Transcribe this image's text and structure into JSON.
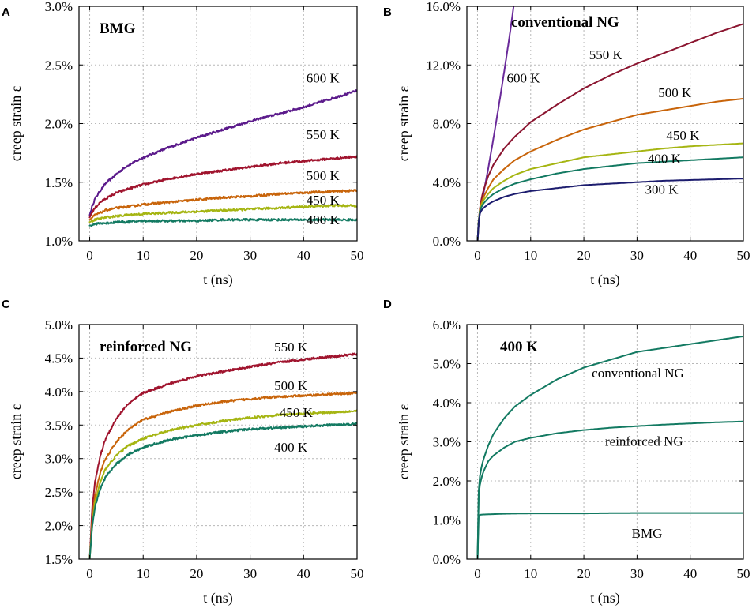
{
  "chart_data": [
    {
      "panel": "A",
      "type": "line",
      "title": "BMG",
      "xlabel": "t (ns)",
      "ylabel": "creep strain ε",
      "xlim": [
        -2,
        50
      ],
      "ylim": [
        1.0,
        3.0
      ],
      "xticks": [
        0,
        10,
        20,
        30,
        40,
        50
      ],
      "xtick_labels": [
        "0",
        "10",
        "20",
        "30",
        "40",
        "50"
      ],
      "yticks": [
        1.0,
        1.5,
        2.0,
        2.5,
        3.0
      ],
      "ytick_labels": [
        "1.0%",
        "1.5%",
        "2.0%",
        "2.5%",
        "3.0%"
      ],
      "noisy": true,
      "series": [
        {
          "name": "600 K",
          "label": "600 K",
          "color": "#5b1a8b",
          "x": [
            0,
            0.5,
            1,
            2,
            3,
            5,
            7,
            10,
            15,
            20,
            25,
            30,
            35,
            40,
            45,
            50
          ],
          "values": [
            1.22,
            1.3,
            1.36,
            1.43,
            1.49,
            1.57,
            1.64,
            1.71,
            1.8,
            1.88,
            1.95,
            2.02,
            2.08,
            2.14,
            2.21,
            2.28
          ]
        },
        {
          "name": "550 K",
          "label": "550 K",
          "color": "#a0142e",
          "x": [
            0,
            0.5,
            1,
            2,
            3,
            5,
            7,
            10,
            15,
            20,
            25,
            30,
            35,
            40,
            45,
            50
          ],
          "values": [
            1.2,
            1.25,
            1.28,
            1.33,
            1.36,
            1.41,
            1.44,
            1.48,
            1.53,
            1.57,
            1.6,
            1.63,
            1.66,
            1.68,
            1.7,
            1.72
          ]
        },
        {
          "name": "500 K",
          "label": "500 K",
          "color": "#c8640a",
          "x": [
            0,
            1,
            2,
            3,
            5,
            7,
            10,
            15,
            20,
            25,
            30,
            35,
            40,
            45,
            50
          ],
          "values": [
            1.18,
            1.22,
            1.24,
            1.26,
            1.28,
            1.29,
            1.31,
            1.33,
            1.35,
            1.37,
            1.38,
            1.4,
            1.41,
            1.42,
            1.43
          ]
        },
        {
          "name": "450 K",
          "label": "450 K",
          "color": "#a5b512",
          "x": [
            0,
            1,
            2,
            3,
            5,
            7,
            10,
            15,
            20,
            25,
            30,
            35,
            40,
            45,
            50
          ],
          "values": [
            1.16,
            1.18,
            1.19,
            1.2,
            1.21,
            1.22,
            1.23,
            1.24,
            1.25,
            1.26,
            1.27,
            1.28,
            1.29,
            1.3,
            1.3
          ]
        },
        {
          "name": "400 K",
          "label": "400 K",
          "color": "#137a62",
          "x": [
            0,
            1,
            2,
            3,
            5,
            7,
            10,
            15,
            20,
            25,
            30,
            35,
            40,
            45,
            50
          ],
          "values": [
            1.13,
            1.14,
            1.15,
            1.15,
            1.16,
            1.16,
            1.17,
            1.17,
            1.17,
            1.18,
            1.18,
            1.18,
            1.18,
            1.18,
            1.18
          ]
        }
      ],
      "annotations": [
        {
          "text": "600 K",
          "x": 40.5,
          "y": 2.35
        },
        {
          "text": "550 K",
          "x": 40.5,
          "y": 1.87
        },
        {
          "text": "500 K",
          "x": 40.5,
          "y": 1.52
        },
        {
          "text": "450 K",
          "x": 40.5,
          "y": 1.31
        },
        {
          "text": "400 K",
          "x": 40.5,
          "y": 1.14
        }
      ]
    },
    {
      "panel": "B",
      "type": "line",
      "title": "conventional NG",
      "xlabel": "t (ns)",
      "ylabel": "creep strain ε",
      "xlim": [
        -2,
        50
      ],
      "ylim": [
        0.0,
        16.0
      ],
      "xticks": [
        0,
        10,
        20,
        30,
        40,
        50
      ],
      "xtick_labels": [
        "0",
        "10",
        "20",
        "30",
        "40",
        "50"
      ],
      "yticks": [
        0.0,
        4.0,
        8.0,
        12.0,
        16.0
      ],
      "ytick_labels": [
        "0.0%",
        "4.0%",
        "8.0%",
        "12.0%",
        "16.0%"
      ],
      "noisy": false,
      "series": [
        {
          "name": "600 K",
          "label": "600 K",
          "color": "#6a2a9a",
          "x": [
            0,
            0.3,
            0.6,
            1,
            2,
            3,
            4,
            5,
            6,
            6.8
          ],
          "values": [
            0,
            1.5,
            2.4,
            3.0,
            4.9,
            7.0,
            9.2,
            11.5,
            13.9,
            16.0
          ]
        },
        {
          "name": "550 K",
          "label": "550 K",
          "color": "#8b1530",
          "x": [
            0,
            0.3,
            0.6,
            1,
            2,
            3,
            5,
            7,
            10,
            15,
            20,
            25,
            30,
            35,
            40,
            45,
            50
          ],
          "values": [
            0,
            1.8,
            2.6,
            3.3,
            4.4,
            5.2,
            6.3,
            7.1,
            8.1,
            9.3,
            10.4,
            11.3,
            12.1,
            12.8,
            13.5,
            14.2,
            14.8
          ]
        },
        {
          "name": "500 K",
          "label": "500 K",
          "color": "#c8640a",
          "x": [
            0,
            0.3,
            0.6,
            1,
            2,
            3,
            5,
            7,
            10,
            15,
            20,
            25,
            30,
            35,
            40,
            45,
            50
          ],
          "values": [
            0,
            1.8,
            2.4,
            2.9,
            3.6,
            4.2,
            4.9,
            5.5,
            6.1,
            6.9,
            7.6,
            8.1,
            8.6,
            8.9,
            9.2,
            9.5,
            9.7
          ]
        },
        {
          "name": "450 K",
          "label": "450 K",
          "color": "#a5b512",
          "x": [
            0,
            0.3,
            0.6,
            1,
            2,
            3,
            5,
            7,
            10,
            15,
            20,
            25,
            30,
            35,
            40,
            45,
            50
          ],
          "values": [
            0,
            1.8,
            2.3,
            2.7,
            3.2,
            3.6,
            4.1,
            4.5,
            4.9,
            5.3,
            5.7,
            5.9,
            6.1,
            6.3,
            6.45,
            6.55,
            6.65
          ]
        },
        {
          "name": "400 K",
          "label": "400 K",
          "color": "#137a62",
          "x": [
            0,
            0.3,
            0.6,
            1,
            2,
            3,
            5,
            7,
            10,
            15,
            20,
            25,
            30,
            35,
            40,
            45,
            50
          ],
          "values": [
            0,
            1.8,
            2.2,
            2.5,
            2.9,
            3.2,
            3.6,
            3.9,
            4.2,
            4.6,
            4.9,
            5.1,
            5.3,
            5.4,
            5.5,
            5.6,
            5.7
          ]
        },
        {
          "name": "300 K",
          "label": "300 K",
          "color": "#1c1c6e",
          "x": [
            0,
            0.3,
            0.6,
            1,
            2,
            3,
            5,
            7,
            10,
            15,
            20,
            25,
            30,
            35,
            40,
            45,
            50
          ],
          "values": [
            0,
            1.7,
            2.0,
            2.2,
            2.5,
            2.7,
            3.0,
            3.2,
            3.4,
            3.6,
            3.8,
            3.9,
            4.0,
            4.1,
            4.15,
            4.2,
            4.25
          ]
        }
      ],
      "annotations": [
        {
          "text": "600 K",
          "x": 5.5,
          "y": 10.8
        },
        {
          "text": "550 K",
          "x": 21,
          "y": 12.4
        },
        {
          "text": "500 K",
          "x": 34,
          "y": 9.8
        },
        {
          "text": "450 K",
          "x": 35.5,
          "y": 6.9
        },
        {
          "text": "400  K",
          "x": 32,
          "y": 5.3
        },
        {
          "text": "300 K",
          "x": 31.5,
          "y": 3.2
        }
      ]
    },
    {
      "panel": "C",
      "type": "line",
      "title": "reinforced NG",
      "xlabel": "t (ns)",
      "ylabel": "creep strain ε",
      "xlim": [
        -2,
        50
      ],
      "ylim": [
        1.5,
        5.0
      ],
      "xticks": [
        0,
        10,
        20,
        30,
        40,
        50
      ],
      "xtick_labels": [
        "0",
        "10",
        "20",
        "30",
        "40",
        "50"
      ],
      "yticks": [
        1.5,
        2.0,
        2.5,
        3.0,
        3.5,
        4.0,
        4.5,
        5.0
      ],
      "ytick_labels": [
        "1.5%",
        "2.0%",
        "2.5%",
        "3.0%",
        "3.5%",
        "4.0%",
        "4.5%",
        "5.0%"
      ],
      "noisy": true,
      "series": [
        {
          "name": "550 K",
          "label": "550 K",
          "color": "#a0142e",
          "x": [
            0,
            0.5,
            1,
            2,
            3,
            5,
            7,
            10,
            15,
            20,
            25,
            30,
            35,
            40,
            45,
            50
          ],
          "values": [
            1.5,
            2.3,
            2.65,
            3.05,
            3.3,
            3.6,
            3.8,
            3.98,
            4.12,
            4.23,
            4.3,
            4.37,
            4.43,
            4.48,
            4.52,
            4.56
          ]
        },
        {
          "name": "500 K",
          "label": "500 K",
          "color": "#c8640a",
          "x": [
            0,
            0.5,
            1,
            2,
            3,
            5,
            7,
            10,
            15,
            20,
            25,
            30,
            35,
            40,
            45,
            50
          ],
          "values": [
            1.5,
            2.1,
            2.45,
            2.8,
            3.0,
            3.25,
            3.42,
            3.58,
            3.7,
            3.79,
            3.85,
            3.89,
            3.92,
            3.94,
            3.96,
            3.98
          ]
        },
        {
          "name": "450 K",
          "label": "450 K",
          "color": "#a5b512",
          "x": [
            0,
            0.5,
            1,
            2,
            3,
            5,
            7,
            10,
            15,
            20,
            25,
            30,
            35,
            40,
            45,
            50
          ],
          "values": [
            1.5,
            2.05,
            2.35,
            2.65,
            2.85,
            3.05,
            3.18,
            3.3,
            3.42,
            3.5,
            3.56,
            3.61,
            3.65,
            3.67,
            3.69,
            3.71
          ]
        },
        {
          "name": "400 K",
          "label": "400 K",
          "color": "#137a62",
          "x": [
            0,
            0.5,
            1,
            2,
            3,
            5,
            7,
            10,
            15,
            20,
            25,
            30,
            35,
            40,
            45,
            50
          ],
          "values": [
            1.5,
            2.0,
            2.28,
            2.55,
            2.73,
            2.92,
            3.05,
            3.17,
            3.28,
            3.35,
            3.4,
            3.44,
            3.46,
            3.48,
            3.5,
            3.52
          ]
        }
      ],
      "annotations": [
        {
          "text": "550 K",
          "x": 34.5,
          "y": 4.6
        },
        {
          "text": "500 K",
          "x": 34.5,
          "y": 4.02
        },
        {
          "text": "450 K",
          "x": 35.5,
          "y": 3.62
        },
        {
          "text": "400 K",
          "x": 34.5,
          "y": 3.1
        }
      ]
    },
    {
      "panel": "D",
      "type": "line",
      "title": "400 K",
      "xlabel": "t (ns)",
      "ylabel": "creep strain ε",
      "xlim": [
        -2,
        50
      ],
      "ylim": [
        0.0,
        6.0
      ],
      "xticks": [
        0,
        10,
        20,
        30,
        40,
        50
      ],
      "xtick_labels": [
        "0",
        "10",
        "20",
        "30",
        "40",
        "50"
      ],
      "yticks": [
        0.0,
        1.0,
        2.0,
        3.0,
        4.0,
        5.0,
        6.0
      ],
      "ytick_labels": [
        "0.0%",
        "1.0%",
        "2.0%",
        "3.0%",
        "4.0%",
        "5.0%",
        "6.0%"
      ],
      "noisy": false,
      "series": [
        {
          "name": "conventional NG",
          "label": "conventional NG",
          "color": "#137a62",
          "x": [
            0,
            0.2,
            0.5,
            1,
            2,
            3,
            5,
            7,
            10,
            15,
            20,
            25,
            30,
            35,
            40,
            45,
            50
          ],
          "values": [
            0,
            1.7,
            2.2,
            2.5,
            2.9,
            3.2,
            3.6,
            3.9,
            4.2,
            4.6,
            4.9,
            5.1,
            5.3,
            5.4,
            5.5,
            5.6,
            5.7
          ]
        },
        {
          "name": "reinforced NG",
          "label": "reinforced NG",
          "color": "#137a62",
          "x": [
            0,
            0.2,
            0.5,
            1,
            2,
            3,
            5,
            7,
            10,
            15,
            20,
            25,
            30,
            35,
            40,
            45,
            50
          ],
          "values": [
            0,
            1.6,
            1.95,
            2.2,
            2.5,
            2.65,
            2.85,
            3.0,
            3.1,
            3.22,
            3.3,
            3.36,
            3.4,
            3.44,
            3.47,
            3.5,
            3.52
          ]
        },
        {
          "name": "BMG",
          "label": "BMG",
          "color": "#137a62",
          "x": [
            0,
            0.1,
            0.3,
            1,
            3,
            5,
            10,
            20,
            30,
            40,
            50
          ],
          "values": [
            0,
            1.05,
            1.13,
            1.14,
            1.15,
            1.16,
            1.17,
            1.17,
            1.18,
            1.18,
            1.18
          ]
        }
      ],
      "annotations": [
        {
          "text": "conventional NG",
          "x": 21.5,
          "y": 4.65
        },
        {
          "text": "reinforced NG",
          "x": 24,
          "y": 2.9
        },
        {
          "text": "BMG",
          "x": 29,
          "y": 0.55
        }
      ]
    }
  ]
}
